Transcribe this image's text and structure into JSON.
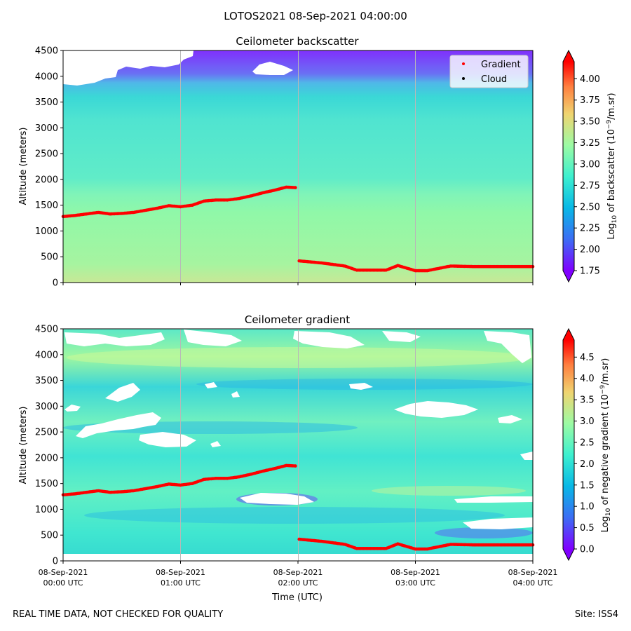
{
  "suptitle": "LOTOS2021 08-Sep-2021 04:00:00",
  "footer": {
    "left": "REAL TIME DATA, NOT CHECKED FOR QUALITY",
    "right": "Site: ISS4"
  },
  "chart_data": [
    {
      "type": "heatmap",
      "title": "Ceilometer backscatter",
      "ylabel": "Altitude (meters)",
      "xlabel": "",
      "x_range": [
        "08-Sep-2021 00:00 UTC",
        "08-Sep-2021 04:00 UTC"
      ],
      "ylim": [
        0,
        4500
      ],
      "y_ticks": [
        "0",
        "500",
        "1000",
        "1500",
        "2000",
        "2500",
        "3000",
        "3500",
        "4000",
        "4500"
      ],
      "x_tick_labels": [],
      "colorbar": {
        "label": "Log10 of backscatter (10^-9/m.sr)",
        "range": [
          1.75,
          4.2
        ],
        "ticks": [
          "1.75",
          "2.00",
          "2.25",
          "2.50",
          "2.75",
          "3.00",
          "3.25",
          "3.50",
          "3.75",
          "4.00"
        ],
        "colormap": "rainbow"
      },
      "legend": {
        "placement": "top-right",
        "entries": [
          {
            "name": "Gradient",
            "color": "#ff0000"
          },
          {
            "name": "Cloud",
            "color": "#000000"
          }
        ]
      },
      "approx_field": [
        {
          "altitude": 100,
          "value": 3.1
        },
        {
          "altitude": 800,
          "value": 3.0
        },
        {
          "altitude": 1500,
          "value": 2.9
        },
        {
          "altitude": 2500,
          "value": 2.75
        },
        {
          "altitude": 3500,
          "value": 2.65
        },
        {
          "altitude": 4200,
          "value": 1.85
        }
      ],
      "missing_data_above_m_first_hour": 3850,
      "gradient_series": {
        "name": "Gradient",
        "x_hours": [
          0.0,
          0.1,
          0.2,
          0.3,
          0.4,
          0.5,
          0.6,
          0.7,
          0.8,
          0.9,
          1.0,
          1.1,
          1.2,
          1.3,
          1.4,
          1.5,
          1.6,
          1.7,
          1.8,
          1.9,
          1.99,
          2.01,
          2.2,
          2.4,
          2.5,
          2.75,
          2.85,
          3.0,
          3.1,
          3.3,
          3.5,
          3.7,
          4.0
        ],
        "y_m": [
          1280,
          1300,
          1330,
          1360,
          1330,
          1340,
          1360,
          1400,
          1440,
          1490,
          1470,
          1500,
          1580,
          1600,
          1600,
          1630,
          1680,
          1740,
          1790,
          1850,
          1840,
          420,
          380,
          320,
          240,
          240,
          330,
          230,
          230,
          320,
          310,
          310,
          310
        ]
      }
    },
    {
      "type": "heatmap",
      "title": "Ceilometer gradient",
      "ylabel": "Altitude (meters)",
      "xlabel": "Time (UTC)",
      "x_range": [
        "08-Sep-2021 00:00 UTC",
        "08-Sep-2021 04:00 UTC"
      ],
      "ylim": [
        0,
        4500
      ],
      "y_ticks": [
        "0",
        "500",
        "1000",
        "1500",
        "2000",
        "2500",
        "3000",
        "3500",
        "4000",
        "4500"
      ],
      "x_tick_labels": [
        {
          "date": "08-Sep-2021",
          "time": "00:00 UTC",
          "hours": 0
        },
        {
          "date": "08-Sep-2021",
          "time": "01:00 UTC",
          "hours": 1
        },
        {
          "date": "08-Sep-2021",
          "time": "02:00 UTC",
          "hours": 2
        },
        {
          "date": "08-Sep-2021",
          "time": "03:00 UTC",
          "hours": 3
        },
        {
          "date": "08-Sep-2021",
          "time": "04:00 UTC",
          "hours": 4
        }
      ],
      "colorbar": {
        "label": "Log10 of negative gradient (10^-9/m.sr)",
        "range": [
          0.0,
          4.9
        ],
        "ticks": [
          "0.0",
          "0.5",
          "1.0",
          "1.5",
          "2.0",
          "2.5",
          "3.0",
          "3.5",
          "4.0",
          "4.5"
        ],
        "colormap": "rainbow"
      },
      "approx_field": [
        {
          "altitude": 500,
          "value": 1.7
        },
        {
          "altitude": 1500,
          "value": 2.0
        },
        {
          "altitude": 2500,
          "value": 1.9
        },
        {
          "altitude": 3500,
          "value": 1.8
        },
        {
          "altitude": 4000,
          "value": 2.3
        }
      ],
      "gradient_series_same_as_top": true
    }
  ]
}
